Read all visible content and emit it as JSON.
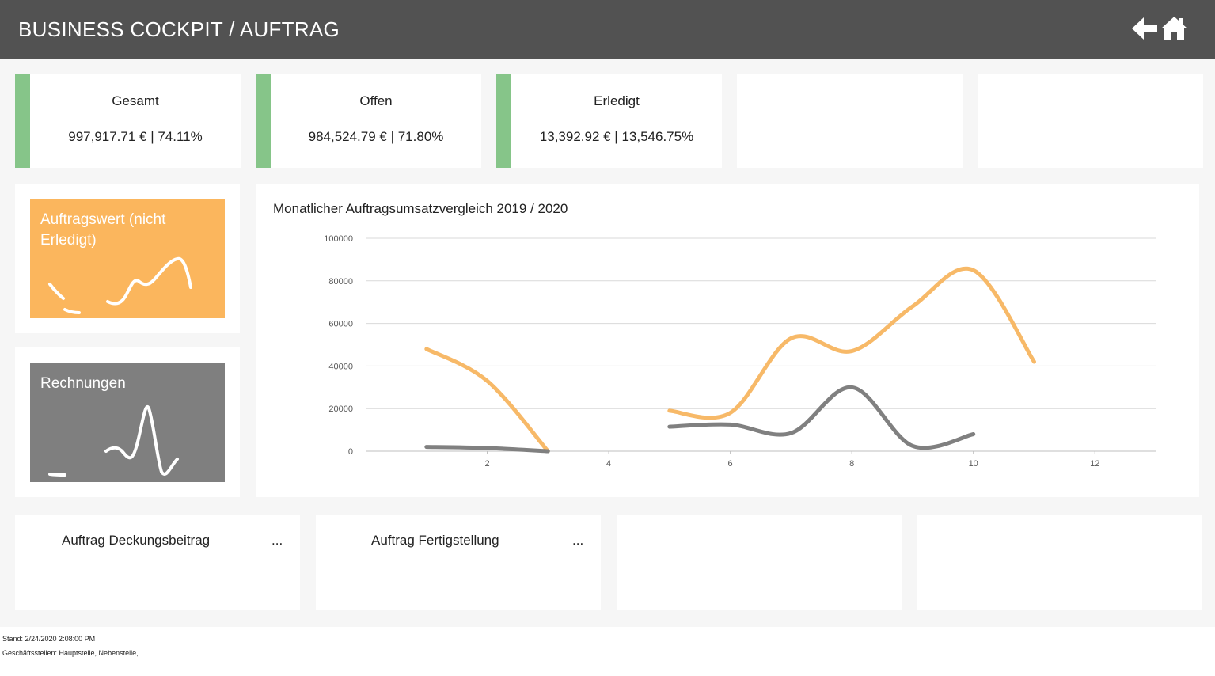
{
  "header": {
    "title": "BUSINESS COCKPIT / AUFTRAG",
    "back_icon": "arrow-left-icon",
    "home_icon": "home-icon"
  },
  "kpis": [
    {
      "title": "Gesamt",
      "value": "997,917.71 € | 74.11%"
    },
    {
      "title": "Offen",
      "value": "984,524.79 € | 71.80%"
    },
    {
      "title": "Erledigt",
      "value": "13,392.92 € | 13,546.75%"
    }
  ],
  "tiles": {
    "auftragswert": {
      "label": "Auftragswert (nicht Erledigt)",
      "color": "#fbb65d"
    },
    "rechnungen": {
      "label": "Rechnungen",
      "color": "#7f7f7f"
    }
  },
  "chart_data": {
    "type": "line",
    "title": "Monatlicher Auftragsumsatzvergleich 2019 / 2020",
    "xlabel": "",
    "ylabel": "",
    "xlim": [
      0,
      13
    ],
    "ylim": [
      0,
      100000
    ],
    "x_ticks": [
      2,
      4,
      6,
      8,
      10,
      12
    ],
    "y_ticks": [
      0,
      20000,
      40000,
      60000,
      80000,
      100000
    ],
    "grid": true,
    "series": [
      {
        "color": "#f7b968",
        "segments": [
          [
            [
              1,
              48000
            ],
            [
              2,
              33000
            ],
            [
              3,
              0
            ]
          ],
          [
            [
              5,
              19000
            ],
            [
              6,
              18000
            ],
            [
              7,
              53000
            ],
            [
              8,
              47000
            ],
            [
              9,
              68000
            ],
            [
              10,
              85000
            ],
            [
              11,
              42000
            ]
          ]
        ]
      },
      {
        "color": "#808080",
        "segments": [
          [
            [
              1,
              2000
            ],
            [
              2,
              1500
            ],
            [
              3,
              0
            ]
          ],
          [
            [
              5,
              11500
            ],
            [
              6,
              12500
            ],
            [
              7,
              8500
            ],
            [
              8,
              30000
            ],
            [
              9,
              2500
            ],
            [
              10,
              8000
            ]
          ]
        ]
      }
    ]
  },
  "bottom_cards": [
    {
      "title": "Auftrag Deckungsbeitrag",
      "more": "..."
    },
    {
      "title": "Auftrag Fertigstellung",
      "more": "..."
    }
  ],
  "footer": {
    "stand": "Stand: 2/24/2020 2:08:00 PM",
    "geschaeftsstellen": "Geschäftsstellen: Hauptstelle, Nebenstelle,"
  }
}
